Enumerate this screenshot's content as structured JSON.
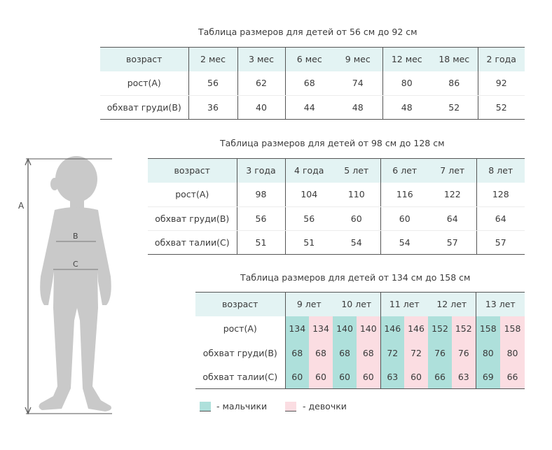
{
  "table1": {
    "title": "Таблица размеров для детей от 56 см до 92 см",
    "header_label": "возраст",
    "ages": [
      "2 мес",
      "3 мес",
      "6 мес",
      "9 мес",
      "12 мес",
      "18 мес",
      "2 года"
    ],
    "rows": [
      {
        "label": "рост(А)",
        "values": [
          "56",
          "62",
          "68",
          "74",
          "80",
          "86",
          "92"
        ]
      },
      {
        "label": "обхват груди(В)",
        "values": [
          "36",
          "40",
          "44",
          "48",
          "48",
          "52",
          "52"
        ]
      }
    ]
  },
  "table2": {
    "title": "Таблица размеров для детей от 98 см до 128 см",
    "header_label": "возраст",
    "ages": [
      "3 года",
      "4 года",
      "5 лет",
      "6 лет",
      "7 лет",
      "8 лет"
    ],
    "rows": [
      {
        "label": "рост(А)",
        "values": [
          "98",
          "104",
          "110",
          "116",
          "122",
          "128"
        ]
      },
      {
        "label": "обхват груди(В)",
        "values": [
          "56",
          "56",
          "60",
          "60",
          "64",
          "64"
        ]
      },
      {
        "label": "обхват талии(С)",
        "values": [
          "51",
          "51",
          "54",
          "54",
          "57",
          "57"
        ]
      }
    ]
  },
  "table3": {
    "title": "Таблица размеров для детей от 134 см до 158 см",
    "header_label": "возраст",
    "ages": [
      "9 лет",
      "10 лет",
      "11 лет",
      "12 лет",
      "13 лет"
    ],
    "rows": [
      {
        "label": "рост(А)",
        "values": [
          "134",
          "134",
          "140",
          "140",
          "146",
          "146",
          "152",
          "152",
          "158",
          "158"
        ]
      },
      {
        "label": "обхват груди(В)",
        "values": [
          "68",
          "68",
          "68",
          "68",
          "72",
          "72",
          "76",
          "76",
          "80",
          "80"
        ]
      },
      {
        "label": "обхват талии(С)",
        "values": [
          "60",
          "60",
          "60",
          "60",
          "63",
          "60",
          "66",
          "63",
          "69",
          "66"
        ]
      }
    ]
  },
  "figure": {
    "label_a": "A",
    "label_b": "B",
    "label_c": "C"
  },
  "legend": {
    "boys": "- мальчики",
    "girls": "- девочки",
    "boys_color": "#aee0db",
    "girls_color": "#fbdde2"
  },
  "colors": {
    "header_bg": "#e3f3f3",
    "silhouette": "#c8c8c8"
  }
}
